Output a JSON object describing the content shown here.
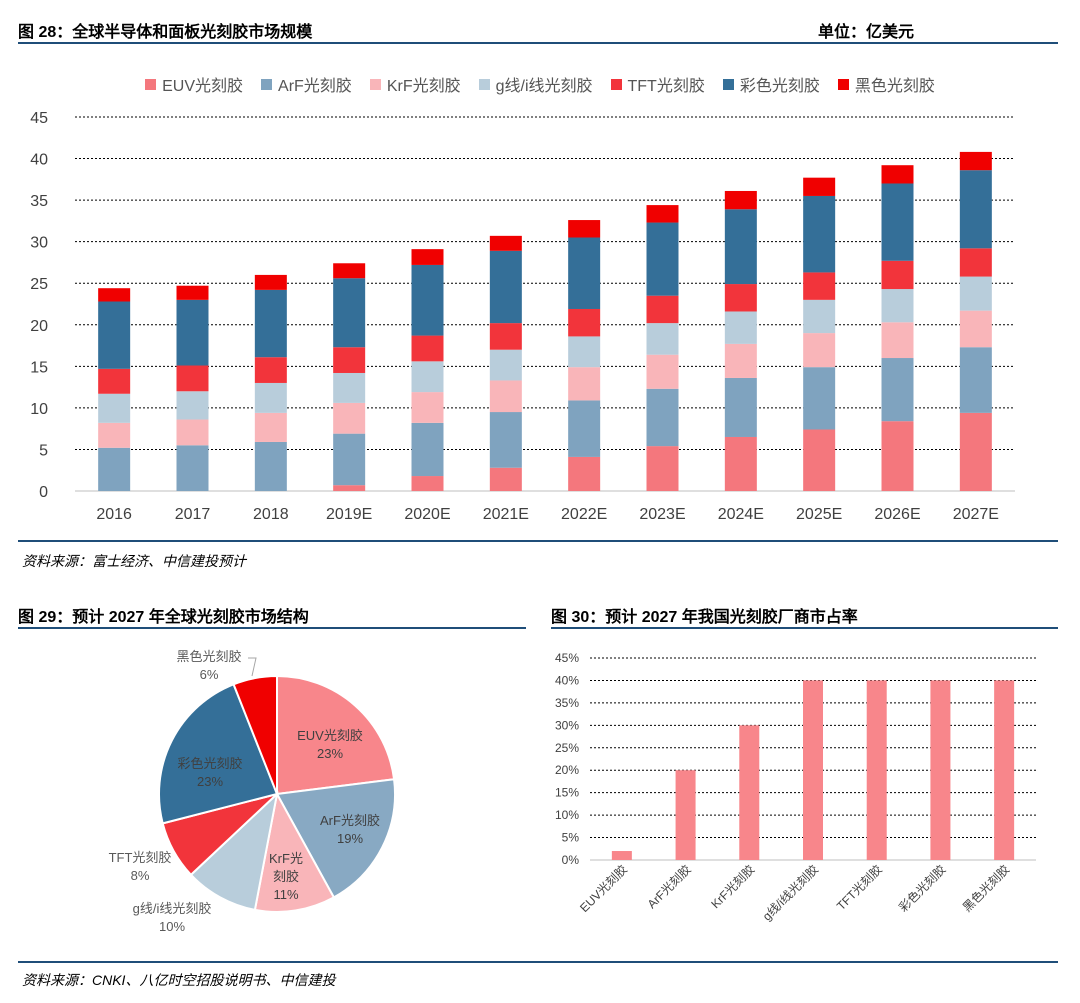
{
  "fig28": {
    "header": "图 28：全球半导体和面板光刻胶市场规模",
    "unit": "单位：亿美元",
    "source": "资料来源：富士经济、中信建投预计"
  },
  "fig29": {
    "header": "图 29：预计 2027 年全球光刻胶市场结构"
  },
  "fig30": {
    "header": "图 30：预计 2027 年我国光刻胶厂商市占率"
  },
  "bottom_source": "资料来源：CNKI、八亿时空招股说明书、中信建投",
  "chart_data": [
    {
      "type": "bar",
      "stacked": true,
      "categories": [
        "2016",
        "2017",
        "2018",
        "2019E",
        "2020E",
        "2021E",
        "2022E",
        "2023E",
        "2024E",
        "2025E",
        "2026E",
        "2027E"
      ],
      "series": [
        {
          "name": "EUV光刻胶",
          "color": "#f4777d",
          "values": [
            0,
            0,
            0,
            0.7,
            1.8,
            2.8,
            4.1,
            5.4,
            6.5,
            7.4,
            8.4,
            9.4
          ]
        },
        {
          "name": "ArF光刻胶",
          "color": "#7fa3bf",
          "values": [
            5.2,
            5.5,
            5.9,
            6.2,
            6.4,
            6.7,
            6.8,
            6.9,
            7.1,
            7.5,
            7.6,
            7.9
          ]
        },
        {
          "name": "KrF光刻胶",
          "color": "#f9b5b9",
          "values": [
            3.0,
            3.1,
            3.5,
            3.7,
            3.7,
            3.8,
            4.0,
            4.1,
            4.1,
            4.1,
            4.3,
            4.4
          ]
        },
        {
          "name": "g线/i线光刻胶",
          "color": "#b8cddb",
          "values": [
            3.5,
            3.4,
            3.6,
            3.6,
            3.7,
            3.7,
            3.7,
            3.8,
            3.9,
            4.0,
            4.0,
            4.1
          ]
        },
        {
          "name": "TFT光刻胶",
          "color": "#f2343b",
          "values": [
            3.0,
            3.1,
            3.1,
            3.1,
            3.1,
            3.2,
            3.3,
            3.3,
            3.3,
            3.3,
            3.4,
            3.4
          ]
        },
        {
          "name": "彩色光刻胶",
          "color": "#346f98",
          "values": [
            8.1,
            7.9,
            8.1,
            8.3,
            8.5,
            8.7,
            8.6,
            8.8,
            9.0,
            9.2,
            9.3,
            9.4
          ]
        },
        {
          "name": "黑色光刻胶",
          "color": "#f00000",
          "values": [
            1.6,
            1.7,
            1.8,
            1.8,
            1.9,
            1.8,
            2.1,
            2.1,
            2.2,
            2.2,
            2.2,
            2.2
          ]
        }
      ],
      "ylim": [
        0,
        45
      ],
      "yticks": [
        0,
        5,
        10,
        15,
        20,
        25,
        30,
        35,
        40,
        45
      ],
      "grid": true,
      "legend": "top"
    },
    {
      "type": "pie",
      "slices": [
        {
          "name": "EUV光刻胶",
          "percent": "23%",
          "value": 23,
          "color": "#f8868b"
        },
        {
          "name": "ArF光刻胶",
          "percent": "19%",
          "value": 19,
          "color": "#88a9c3"
        },
        {
          "name": "KrF光刻胶",
          "percent": "11%",
          "value": 11,
          "color": "#f9b5b9"
        },
        {
          "name": "g线/i线光刻胶",
          "percent": "10%",
          "value": 10,
          "color": "#b8cddb"
        },
        {
          "name": "TFT光刻胶",
          "percent": "8%",
          "value": 8,
          "color": "#f2343b"
        },
        {
          "name": "彩色光刻胶",
          "percent": "23%",
          "value": 23,
          "color": "#346f98"
        },
        {
          "name": "黑色光刻胶",
          "percent": "6%",
          "value": 6,
          "color": "#f00000"
        }
      ],
      "labels": [
        {
          "name": "EUV光刻胶",
          "percent": "23%"
        },
        {
          "name": "ArF光刻胶",
          "percent": "19%"
        },
        {
          "name_lines": [
            "KrF光",
            "刻胶"
          ],
          "percent": "11%"
        },
        {
          "name": "g线/i线光刻胶",
          "percent": "10%"
        },
        {
          "name": "TFT光刻胶",
          "percent": "8%"
        },
        {
          "name": "彩色光刻胶",
          "percent": "23%"
        },
        {
          "name": "黑色光刻胶",
          "percent": "6%"
        }
      ]
    },
    {
      "type": "bar",
      "categories": [
        "EUV光刻胶",
        "ArF光刻胶",
        "KrF光刻胶",
        "g线/i线光刻胶",
        "TFT光刻胶",
        "彩色光刻胶",
        "黑色光刻胶"
      ],
      "values": [
        2,
        20,
        30,
        40,
        40,
        40,
        40
      ],
      "color": "#f8868b",
      "ylim": [
        0,
        45
      ],
      "yticks": [
        "0%",
        "5%",
        "10%",
        "15%",
        "20%",
        "25%",
        "30%",
        "35%",
        "40%",
        "45%"
      ],
      "grid": true
    }
  ]
}
